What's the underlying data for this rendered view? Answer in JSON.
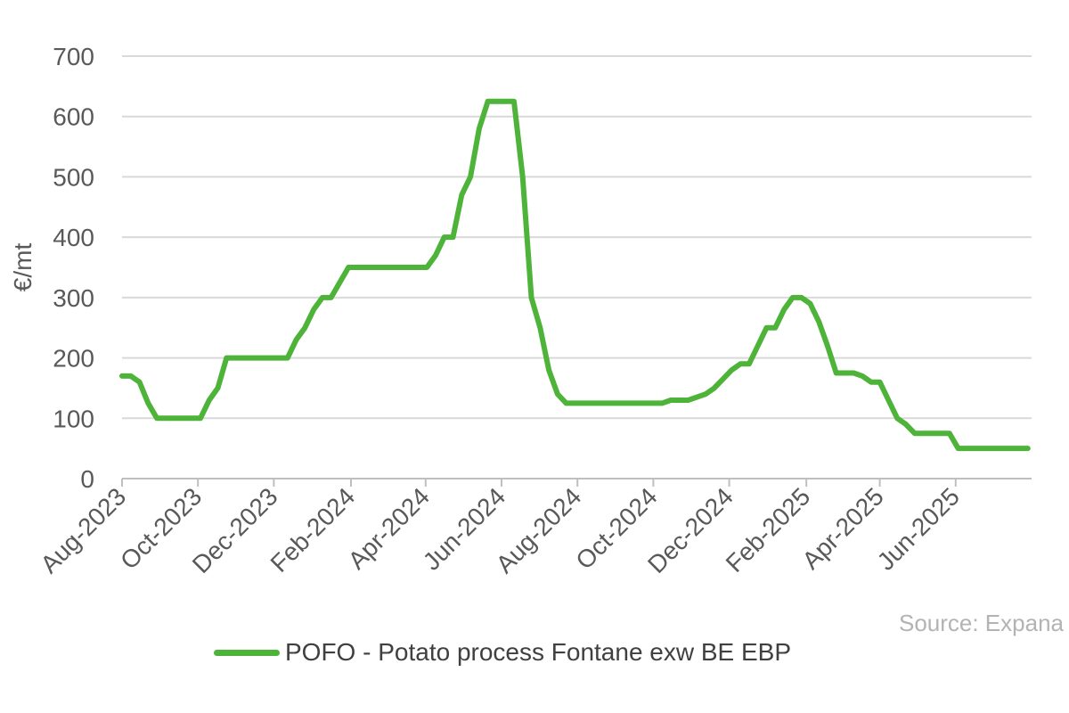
{
  "chart_data": {
    "type": "line",
    "ylabel": "€/mt",
    "xlabel": "",
    "ylim": [
      0,
      700
    ],
    "yticks": [
      0,
      100,
      200,
      300,
      400,
      500,
      600,
      700
    ],
    "grid": true,
    "legend_position": "bottom",
    "x_tick_labels": [
      "Aug-2023",
      "Oct-2023",
      "Dec-2023",
      "Feb-2024",
      "Apr-2024",
      "Jun-2024",
      "Aug-2024",
      "Oct-2024",
      "Dec-2024",
      "Feb-2025",
      "Apr-2025",
      "Jun-2025"
    ],
    "series": [
      {
        "name": "POFO - Potato process Fontane exw BE EBP",
        "color": "#4db339",
        "x": [
          "2023-08-01",
          "2023-08-08",
          "2023-08-15",
          "2023-08-22",
          "2023-08-29",
          "2023-09-05",
          "2023-09-12",
          "2023-09-19",
          "2023-09-26",
          "2023-10-03",
          "2023-10-10",
          "2023-10-17",
          "2023-10-24",
          "2023-10-31",
          "2023-11-07",
          "2023-11-14",
          "2023-11-21",
          "2023-11-28",
          "2023-12-05",
          "2023-12-12",
          "2023-12-19",
          "2023-12-26",
          "2024-01-02",
          "2024-01-09",
          "2024-01-16",
          "2024-01-23",
          "2024-01-30",
          "2024-02-06",
          "2024-02-13",
          "2024-02-20",
          "2024-02-27",
          "2024-03-05",
          "2024-03-12",
          "2024-03-19",
          "2024-03-26",
          "2024-04-02",
          "2024-04-09",
          "2024-04-16",
          "2024-04-23",
          "2024-04-30",
          "2024-05-07",
          "2024-05-14",
          "2024-05-21",
          "2024-05-28",
          "2024-06-04",
          "2024-06-11",
          "2024-06-18",
          "2024-06-25",
          "2024-07-02",
          "2024-07-09",
          "2024-07-16",
          "2024-07-23",
          "2024-07-30",
          "2024-08-06",
          "2024-08-13",
          "2024-08-20",
          "2024-08-27",
          "2024-09-03",
          "2024-09-10",
          "2024-09-17",
          "2024-09-24",
          "2024-10-01",
          "2024-10-08",
          "2024-10-15",
          "2024-10-22",
          "2024-10-29",
          "2024-11-05",
          "2024-11-12",
          "2024-11-19",
          "2024-11-26",
          "2024-12-03",
          "2024-12-10",
          "2024-12-17",
          "2024-12-24",
          "2024-12-31",
          "2025-01-07",
          "2025-01-14",
          "2025-01-21",
          "2025-01-28",
          "2025-02-04",
          "2025-02-11",
          "2025-02-18",
          "2025-02-25",
          "2025-03-04",
          "2025-03-11",
          "2025-03-18",
          "2025-03-25",
          "2025-04-01",
          "2025-04-08",
          "2025-04-15",
          "2025-04-22",
          "2025-04-29",
          "2025-05-06",
          "2025-05-13",
          "2025-05-20",
          "2025-05-27",
          "2025-06-03",
          "2025-06-10",
          "2025-06-17",
          "2025-06-24",
          "2025-07-01",
          "2025-07-08",
          "2025-07-15",
          "2025-07-22",
          "2025-07-29"
        ],
        "values": [
          170,
          170,
          160,
          125,
          100,
          100,
          100,
          100,
          100,
          100,
          130,
          150,
          200,
          200,
          200,
          200,
          200,
          200,
          200,
          200,
          230,
          250,
          280,
          300,
          300,
          325,
          350,
          350,
          350,
          350,
          350,
          350,
          350,
          350,
          350,
          350,
          370,
          400,
          400,
          470,
          500,
          580,
          625,
          625,
          625,
          625,
          500,
          300,
          250,
          180,
          140,
          125,
          125,
          125,
          125,
          125,
          125,
          125,
          125,
          125,
          125,
          125,
          125,
          130,
          130,
          130,
          135,
          140,
          150,
          165,
          180,
          190,
          190,
          220,
          250,
          250,
          280,
          300,
          300,
          290,
          260,
          220,
          175,
          175,
          175,
          170,
          160,
          160,
          130,
          100,
          90,
          75,
          75,
          75,
          75,
          75,
          50,
          50,
          50,
          50,
          50,
          50,
          50,
          50,
          50
        ]
      }
    ]
  },
  "source_text": "Source: Expana"
}
